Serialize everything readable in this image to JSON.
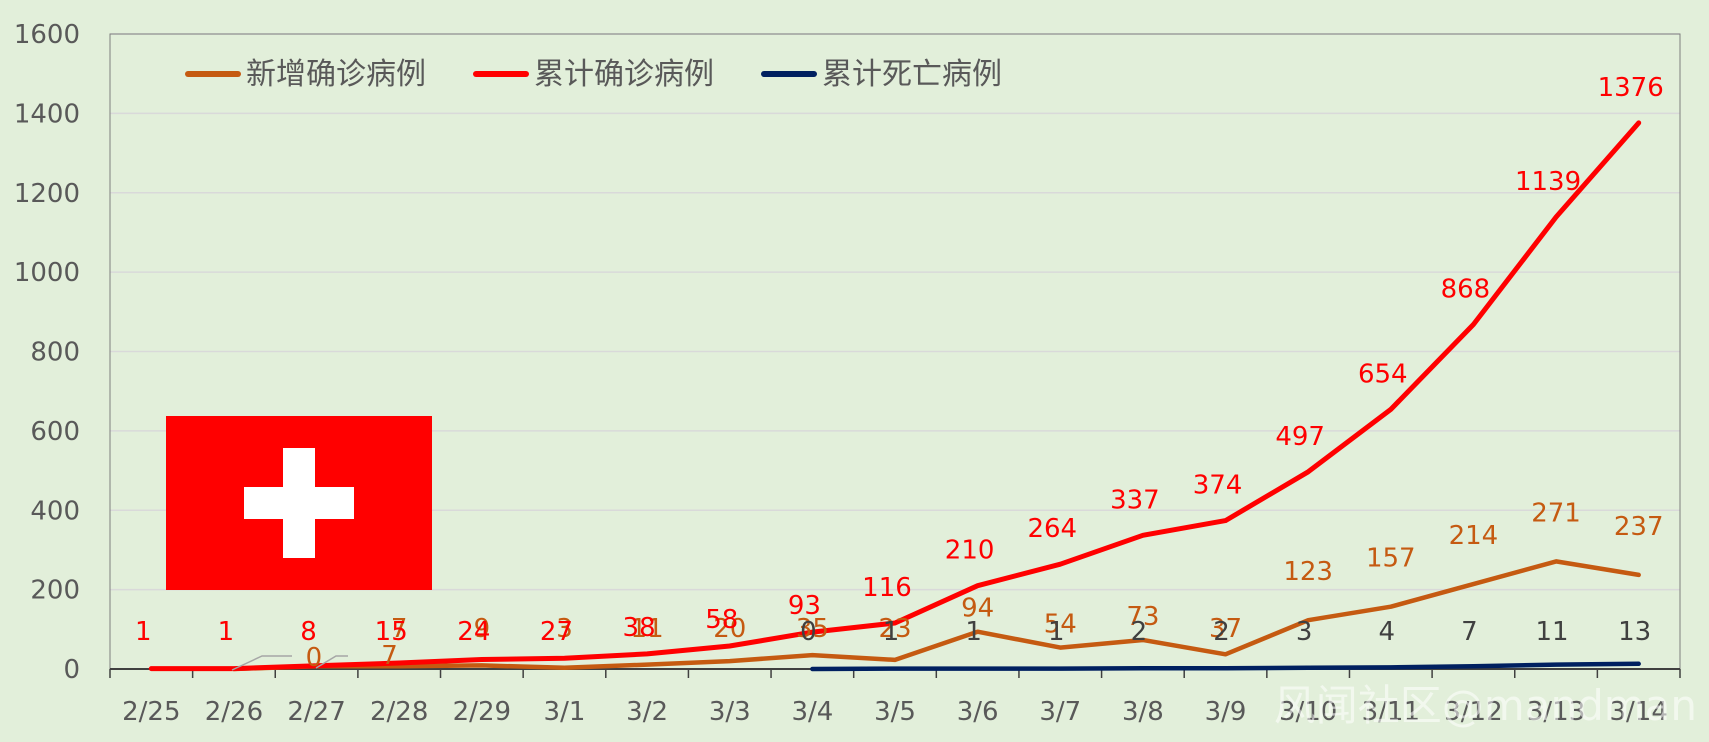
{
  "chart_data": {
    "type": "line",
    "title": "",
    "xlabel": "",
    "ylabel": "",
    "ylim": [
      0,
      1600
    ],
    "yticks": [
      0,
      200,
      400,
      600,
      800,
      1000,
      1200,
      1400,
      1600
    ],
    "grid": true,
    "legend_position": "top-left",
    "categories": [
      "2/25",
      "2/26",
      "2/27",
      "2/28",
      "2/29",
      "3/1",
      "3/2",
      "3/3",
      "3/4",
      "3/5",
      "3/6",
      "3/7",
      "3/8",
      "3/9",
      "3/10",
      "3/11",
      "3/12",
      "3/13",
      "3/14"
    ],
    "series": [
      {
        "name": "新增确诊病例",
        "color": "#c55a11",
        "values": [
          null,
          0,
          7,
          7,
          9,
          3,
          11,
          20,
          35,
          23,
          94,
          54,
          73,
          37,
          123,
          157,
          214,
          271,
          237
        ]
      },
      {
        "name": "累计确诊病例",
        "color": "#ff0000",
        "values": [
          1,
          1,
          8,
          15,
          24,
          27,
          38,
          58,
          93,
          116,
          210,
          264,
          337,
          374,
          497,
          654,
          868,
          1139,
          1376
        ]
      },
      {
        "name": "累计死亡病例",
        "color": "#002060",
        "values": [
          null,
          null,
          null,
          null,
          null,
          null,
          null,
          null,
          0,
          1,
          1,
          1,
          2,
          2,
          3,
          4,
          7,
          11,
          13
        ]
      }
    ]
  },
  "colors": {
    "background": "#e2efda",
    "grid": "#d9d9d9",
    "flag_red": "#ff0000",
    "flag_cross": "#ffffff"
  },
  "flag": {
    "country": "Switzerland",
    "icon": "swiss-flag-icon"
  },
  "watermark": "风闻社区@mandman"
}
